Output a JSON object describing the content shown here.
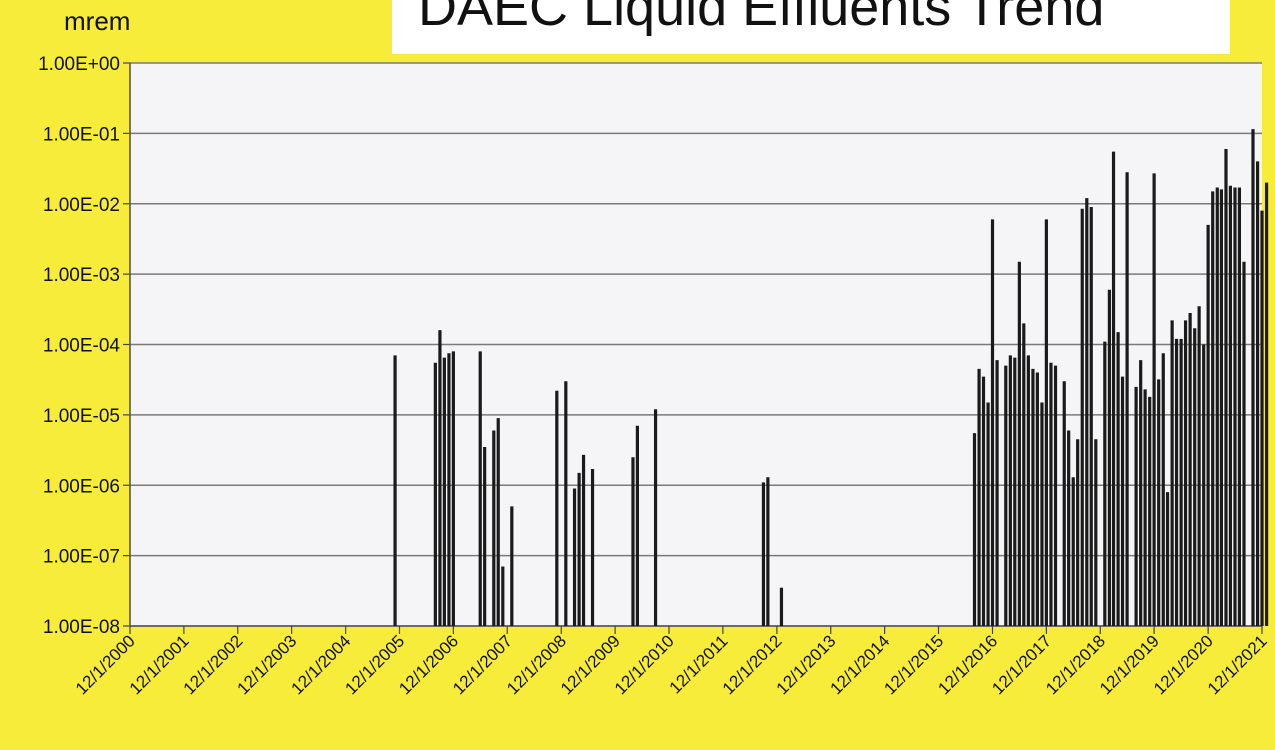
{
  "chart_data": {
    "type": "bar",
    "title": "DAEC Liquid Effluents Trend",
    "ylabel": "mrem",
    "xlabel": "",
    "y_scale": "log",
    "ylim": [
      1e-08,
      1
    ],
    "xlim": [
      "2000-12-01",
      "2021-12-01"
    ],
    "grid": "horizontal",
    "legend": "none",
    "bar_color": "#1a1a1a",
    "plot_background": "#f5f5f7",
    "page_background": "#f7ec3a",
    "y_tick_labels": [
      "1.00E+00",
      "1.00E-01",
      "1.00E-02",
      "1.00E-03",
      "1.00E-04",
      "1.00E-05",
      "1.00E-06",
      "1.00E-07",
      "1.00E-08"
    ],
    "y_tick_values": [
      1,
      0.1,
      0.01,
      0.001,
      0.0001,
      1e-05,
      1e-06,
      1e-07,
      1e-08
    ],
    "x_tick_labels": [
      "12/1/2000",
      "12/1/2001",
      "12/1/2002",
      "12/1/2003",
      "12/1/2004",
      "12/1/2005",
      "12/1/2006",
      "12/1/2007",
      "12/1/2008",
      "12/1/2009",
      "12/1/2010",
      "12/1/2011",
      "12/1/2012",
      "12/1/2013",
      "12/1/2014",
      "12/1/2015",
      "12/1/2016",
      "12/1/2017",
      "12/1/2018",
      "12/1/2019",
      "12/1/2020",
      "12/1/2021"
    ],
    "points": [
      {
        "x": "2005-11-01",
        "y": 7e-05
      },
      {
        "x": "2006-08-01",
        "y": 5.5e-05
      },
      {
        "x": "2006-09-01",
        "y": 0.00016
      },
      {
        "x": "2006-10-01",
        "y": 6.5e-05
      },
      {
        "x": "2006-11-01",
        "y": 7.5e-05
      },
      {
        "x": "2006-12-01",
        "y": 8e-05
      },
      {
        "x": "2007-06-01",
        "y": 8e-05
      },
      {
        "x": "2007-07-01",
        "y": 3.5e-06
      },
      {
        "x": "2007-09-01",
        "y": 6e-06
      },
      {
        "x": "2007-10-01",
        "y": 9e-06
      },
      {
        "x": "2007-11-01",
        "y": 7e-08
      },
      {
        "x": "2008-01-01",
        "y": 5e-07
      },
      {
        "x": "2008-11-01",
        "y": 2.2e-05
      },
      {
        "x": "2009-01-01",
        "y": 3e-05
      },
      {
        "x": "2009-03-01",
        "y": 9e-07
      },
      {
        "x": "2009-04-01",
        "y": 1.5e-06
      },
      {
        "x": "2009-05-01",
        "y": 2.7e-06
      },
      {
        "x": "2009-07-01",
        "y": 1.7e-06
      },
      {
        "x": "2010-04-01",
        "y": 2.5e-06
      },
      {
        "x": "2010-05-01",
        "y": 7e-06
      },
      {
        "x": "2010-09-01",
        "y": 1.2e-05
      },
      {
        "x": "2012-09-01",
        "y": 1.1e-06
      },
      {
        "x": "2012-10-01",
        "y": 1.3e-06
      },
      {
        "x": "2013-01-01",
        "y": 3.5e-08
      },
      {
        "x": "2016-08-01",
        "y": 5.5e-06
      },
      {
        "x": "2016-09-01",
        "y": 4.5e-05
      },
      {
        "x": "2016-10-01",
        "y": 3.5e-05
      },
      {
        "x": "2016-11-01",
        "y": 1.5e-05
      },
      {
        "x": "2016-12-01",
        "y": 0.006
      },
      {
        "x": "2017-01-01",
        "y": 6e-05
      },
      {
        "x": "2017-03-01",
        "y": 5e-05
      },
      {
        "x": "2017-04-01",
        "y": 7e-05
      },
      {
        "x": "2017-05-01",
        "y": 6.5e-05
      },
      {
        "x": "2017-06-01",
        "y": 0.0015
      },
      {
        "x": "2017-07-01",
        "y": 0.0002
      },
      {
        "x": "2017-08-01",
        "y": 7e-05
      },
      {
        "x": "2017-09-01",
        "y": 4.5e-05
      },
      {
        "x": "2017-10-01",
        "y": 4e-05
      },
      {
        "x": "2017-11-01",
        "y": 1.5e-05
      },
      {
        "x": "2017-12-01",
        "y": 0.006
      },
      {
        "x": "2018-01-01",
        "y": 5.5e-05
      },
      {
        "x": "2018-02-01",
        "y": 5e-05
      },
      {
        "x": "2018-04-01",
        "y": 3e-05
      },
      {
        "x": "2018-05-01",
        "y": 6e-06
      },
      {
        "x": "2018-06-01",
        "y": 1.3e-06
      },
      {
        "x": "2018-07-01",
        "y": 4.5e-06
      },
      {
        "x": "2018-08-01",
        "y": 0.0085
      },
      {
        "x": "2018-09-01",
        "y": 0.012
      },
      {
        "x": "2018-10-01",
        "y": 0.009
      },
      {
        "x": "2018-11-01",
        "y": 4.5e-06
      },
      {
        "x": "2019-01-01",
        "y": 0.00011
      },
      {
        "x": "2019-02-01",
        "y": 0.0006
      },
      {
        "x": "2019-03-01",
        "y": 0.055
      },
      {
        "x": "2019-04-01",
        "y": 0.00015
      },
      {
        "x": "2019-05-01",
        "y": 3.5e-05
      },
      {
        "x": "2019-06-01",
        "y": 0.028
      },
      {
        "x": "2019-08-01",
        "y": 2.5e-05
      },
      {
        "x": "2019-09-01",
        "y": 6e-05
      },
      {
        "x": "2019-10-01",
        "y": 2.3e-05
      },
      {
        "x": "2019-11-01",
        "y": 1.8e-05
      },
      {
        "x": "2019-12-01",
        "y": 0.027
      },
      {
        "x": "2020-01-01",
        "y": 3.2e-05
      },
      {
        "x": "2020-02-01",
        "y": 7.5e-05
      },
      {
        "x": "2020-03-01",
        "y": 8e-07
      },
      {
        "x": "2020-04-01",
        "y": 0.00022
      },
      {
        "x": "2020-05-01",
        "y": 0.00012
      },
      {
        "x": "2020-06-01",
        "y": 0.00012
      },
      {
        "x": "2020-07-01",
        "y": 0.00022
      },
      {
        "x": "2020-08-01",
        "y": 0.00028
      },
      {
        "x": "2020-09-01",
        "y": 0.00017
      },
      {
        "x": "2020-10-01",
        "y": 0.00035
      },
      {
        "x": "2020-11-01",
        "y": 0.0001
      },
      {
        "x": "2020-12-01",
        "y": 0.005
      },
      {
        "x": "2021-01-01",
        "y": 0.015
      },
      {
        "x": "2021-02-01",
        "y": 0.017
      },
      {
        "x": "2021-03-01",
        "y": 0.016
      },
      {
        "x": "2021-04-01",
        "y": 0.06
      },
      {
        "x": "2021-05-01",
        "y": 0.018
      },
      {
        "x": "2021-06-01",
        "y": 0.017
      },
      {
        "x": "2021-07-01",
        "y": 0.017
      },
      {
        "x": "2021-08-01",
        "y": 0.0015
      },
      {
        "x": "2021-10-01",
        "y": 0.115
      },
      {
        "x": "2021-11-01",
        "y": 0.04
      },
      {
        "x": "2021-12-01",
        "y": 0.008
      },
      {
        "x": "2022-01-01",
        "y": 0.02
      }
    ]
  }
}
